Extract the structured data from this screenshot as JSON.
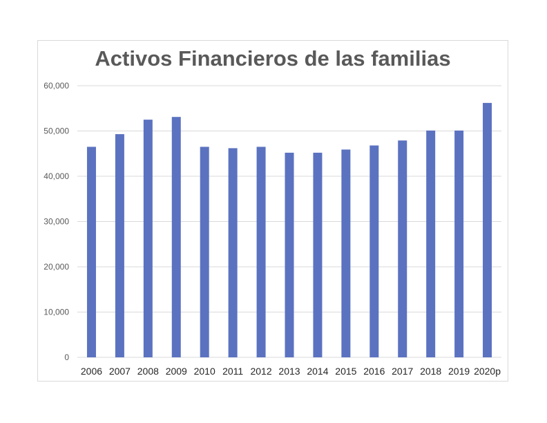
{
  "chart_data": {
    "type": "bar",
    "title": "Activos Financieros de las familias",
    "xlabel": "",
    "ylabel": "",
    "categories": [
      "2006",
      "2007",
      "2008",
      "2009",
      "2010",
      "2011",
      "2012",
      "2013",
      "2014",
      "2015",
      "2016",
      "2017",
      "2018",
      "2019",
      "2020p"
    ],
    "series": [
      {
        "values": [
          46500,
          49300,
          52500,
          53100,
          46500,
          46200,
          46500,
          45200,
          45200,
          45900,
          46800,
          47900,
          50100,
          50100,
          56200
        ]
      }
    ],
    "ylim": [
      0,
      60000
    ],
    "yticks": [
      0,
      10000,
      20000,
      30000,
      40000,
      50000,
      60000
    ],
    "ytick_labels": [
      "0",
      "10,000",
      "20,000",
      "30,000",
      "40,000",
      "50,000",
      "60,000"
    ],
    "grid": true,
    "legend": "none",
    "colors": {
      "bar": "#5b72c0",
      "grid": "#d9d9d9",
      "title": "#595959"
    }
  }
}
